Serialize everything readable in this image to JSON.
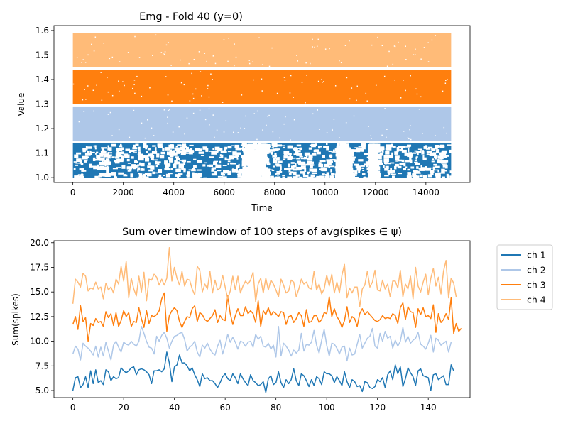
{
  "chart_data": [
    {
      "type": "scatter",
      "title": "Emg - Fold 40 (y=0)",
      "xlabel": "Time",
      "ylabel": "Value",
      "xlim": [
        -750,
        15750
      ],
      "ylim": [
        0.98,
        1.62
      ],
      "xticks": [
        0,
        2000,
        4000,
        6000,
        8000,
        10000,
        12000,
        14000
      ],
      "xtick_labels": [
        "0",
        "2000",
        "4000",
        "6000",
        "8000",
        "10000",
        "12000",
        "14000"
      ],
      "yticks": [
        1.0,
        1.1,
        1.2,
        1.3,
        1.4,
        1.5,
        1.6
      ],
      "ytick_labels": [
        "1.0",
        "1.1",
        "1.2",
        "1.3",
        "1.4",
        "1.5",
        "1.6"
      ],
      "grid": false,
      "x_range": [
        0,
        15000
      ],
      "bands": [
        {
          "channel": 1,
          "y_min": 1.0,
          "y_max": 1.14,
          "color": "#1f77b4",
          "sparse": true,
          "gaps": [
            [
              6700,
              7600
            ],
            [
              10400,
              10900
            ],
            [
              11700,
              11900
            ]
          ]
        },
        {
          "channel": 2,
          "y_min": 1.15,
          "y_max": 1.29,
          "color": "#aec7e8",
          "sparse": false,
          "gaps": []
        },
        {
          "channel": 3,
          "y_min": 1.3,
          "y_max": 1.44,
          "color": "#ff7f0e",
          "sparse": false,
          "gaps": []
        },
        {
          "channel": 4,
          "y_min": 1.45,
          "y_max": 1.59,
          "color": "#ffbb78",
          "sparse": false,
          "gaps": []
        }
      ]
    },
    {
      "type": "line",
      "title": "Sum over timewindow of 100 steps of avg(spikes ∈ ψ)",
      "xlabel": "",
      "ylabel": "Sum(spikes)",
      "xlim": [
        -7.45,
        156.45
      ],
      "ylim": [
        4.28,
        20.2
      ],
      "xticks": [
        0,
        20,
        40,
        60,
        80,
        100,
        120,
        140
      ],
      "xtick_labels": [
        "0",
        "20",
        "40",
        "60",
        "80",
        "100",
        "120",
        "140"
      ],
      "yticks": [
        5.0,
        7.5,
        10.0,
        12.5,
        15.0,
        17.5,
        20.0
      ],
      "ytick_labels": [
        "5.0",
        "7.5",
        "10.0",
        "12.5",
        "15.0",
        "17.5",
        "20.0"
      ],
      "grid": false,
      "legend_position": "outside-right-top",
      "x_start": 0,
      "x_step": 1,
      "series": [
        {
          "name": "ch 1",
          "color": "#1f77b4",
          "values": [
            5.0,
            6.3,
            6.4,
            5.3,
            5.6,
            6.4,
            5.3,
            7.0,
            5.7,
            7.1,
            5.8,
            6.0,
            5.6,
            7.1,
            6.9,
            6.0,
            6.4,
            6.2,
            6.3,
            7.3,
            7.0,
            6.8,
            7.0,
            7.3,
            7.4,
            6.6,
            7.1,
            7.2,
            7.1,
            6.9,
            6.6,
            5.7,
            7.0,
            7.0,
            7.1,
            6.9,
            7.2,
            8.9,
            7.8,
            5.9,
            7.4,
            7.6,
            8.6,
            7.8,
            7.8,
            7.5,
            7.0,
            7.3,
            6.6,
            6.1,
            5.4,
            6.7,
            6.2,
            6.3,
            6.0,
            6.0,
            5.7,
            5.3,
            5.8,
            6.4,
            6.7,
            6.2,
            6.0,
            6.7,
            6.3,
            5.7,
            6.7,
            6.2,
            5.8,
            5.5,
            6.6,
            6.0,
            5.8,
            5.5,
            5.6,
            5.9,
            4.8,
            6.2,
            6.5,
            5.6,
            5.8,
            6.9,
            5.8,
            5.3,
            6.1,
            5.7,
            6.1,
            7.2,
            6.0,
            5.5,
            6.7,
            6.5,
            6.0,
            5.4,
            6.1,
            5.5,
            6.4,
            6.2,
            5.6,
            6.9,
            6.7,
            6.7,
            6.5,
            5.8,
            6.4,
            6.0,
            5.5,
            6.9,
            5.9,
            5.3,
            6.1,
            5.9,
            5.4,
            5.5,
            4.9,
            5.9,
            5.8,
            5.3,
            5.2,
            5.4,
            6.1,
            5.9,
            6.3,
            5.3,
            6.6,
            7.0,
            6.1,
            7.6,
            6.7,
            7.4,
            5.4,
            6.2,
            7.3,
            6.8,
            6.4,
            5.5,
            7.0,
            7.2,
            6.5,
            6.4,
            6.3,
            5.0,
            6.6,
            6.7,
            6.1,
            6.3,
            6.5,
            5.6,
            5.6,
            7.6,
            7.0
          ]
        },
        {
          "name": "ch 2",
          "color": "#aec7e8",
          "values": [
            8.7,
            9.5,
            9.2,
            8.1,
            9.8,
            9.5,
            9.3,
            9.0,
            8.6,
            9.5,
            8.4,
            9.4,
            8.5,
            9.9,
            9.0,
            8.1,
            9.6,
            10.0,
            9.4,
            8.9,
            9.9,
            9.7,
            9.6,
            10.0,
            9.7,
            9.5,
            10.0,
            11.5,
            10.8,
            10.0,
            9.4,
            9.3,
            8.7,
            10.5,
            10.0,
            10.6,
            10.9,
            10.3,
            9.3,
            10.0,
            10.5,
            10.6,
            10.8,
            10.9,
            10.2,
            9.0,
            9.4,
            9.6,
            10.0,
            8.9,
            8.4,
            9.6,
            9.3,
            9.8,
            9.2,
            8.8,
            8.6,
            9.5,
            10.1,
            8.7,
            9.6,
            10.7,
            9.9,
            10.4,
            9.9,
            9.2,
            10.0,
            9.9,
            9.5,
            9.9,
            10.0,
            9.4,
            10.7,
            10.2,
            10.5,
            9.5,
            9.4,
            9.8,
            9.2,
            9.6,
            8.4,
            11.5,
            8.5,
            9.8,
            9.5,
            9.1,
            8.5,
            9.1,
            8.8,
            9.1,
            10.8,
            9.0,
            9.7,
            9.6,
            9.9,
            11.1,
            9.6,
            8.8,
            10.1,
            11.2,
            9.6,
            8.5,
            9.8,
            9.7,
            9.3,
            8.7,
            9.4,
            9.5,
            8.0,
            9.3,
            8.6,
            8.7,
            9.7,
            10.7,
            9.3,
            9.8,
            10.3,
            10.5,
            11.3,
            9.5,
            9.3,
            10.8,
            10.0,
            11.0,
            10.3,
            10.5,
            9.3,
            10.1,
            9.5,
            10.0,
            11.4,
            9.9,
            10.5,
            9.8,
            10.1,
            10.3,
            10.9,
            9.7,
            9.5,
            9.2,
            9.8,
            10.6,
            8.9,
            10.3,
            10.1,
            9.6,
            9.8,
            10.0,
            8.9,
            9.9
          ]
        },
        {
          "name": "ch 3",
          "color": "#ff7f0e",
          "values": [
            11.7,
            12.5,
            11.2,
            13.6,
            12.0,
            12.4,
            10.0,
            11.8,
            11.6,
            12.3,
            11.9,
            12.0,
            11.5,
            13.0,
            12.4,
            12.8,
            11.6,
            12.9,
            11.5,
            12.1,
            13.1,
            12.5,
            12.9,
            11.5,
            12.0,
            11.9,
            13.4,
            12.3,
            11.4,
            13.1,
            11.8,
            12.6,
            12.5,
            12.7,
            13.1,
            14.3,
            14.9,
            11.0,
            12.6,
            13.1,
            13.4,
            13.1,
            12.0,
            11.4,
            12.0,
            12.5,
            12.4,
            13.3,
            13.6,
            12.0,
            12.9,
            12.7,
            12.2,
            12.0,
            12.3,
            12.6,
            13.2,
            11.9,
            12.6,
            12.2,
            12.1,
            14.6,
            12.8,
            11.7,
            12.6,
            13.3,
            12.6,
            12.6,
            13.5,
            12.8,
            13.1,
            12.8,
            11.9,
            14.1,
            11.5,
            13.1,
            12.7,
            13.4,
            12.6,
            13.0,
            12.8,
            12.5,
            13.0,
            12.9,
            11.7,
            12.5,
            12.6,
            11.9,
            12.3,
            12.9,
            12.6,
            11.5,
            13.2,
            11.9,
            12.0,
            12.6,
            12.6,
            11.9,
            12.2,
            12.9,
            12.8,
            14.5,
            12.5,
            13.3,
            12.5,
            12.1,
            11.4,
            12.1,
            13.5,
            11.9,
            12.5,
            12.3,
            11.5,
            12.8,
            13.3,
            12.7,
            13.0,
            12.7,
            12.4,
            12.1,
            12.0,
            12.2,
            12.6,
            12.3,
            12.4,
            12.3,
            12.8,
            12.6,
            11.8,
            13.4,
            13.9,
            12.2,
            13.5,
            13.0,
            12.9,
            11.4,
            13.3,
            12.7,
            13.4,
            12.5,
            12.6,
            12.3,
            13.7,
            10.9,
            12.8,
            11.9,
            12.2,
            12.8,
            12.2,
            14.4,
            10.8,
            11.8,
            11.0,
            11.3
          ]
        },
        {
          "name": "ch 4",
          "color": "#ffbb78",
          "values": [
            13.8,
            16.3,
            16.0,
            15.5,
            16.9,
            16.6,
            15.1,
            15.4,
            15.3,
            16.0,
            15.3,
            15.5,
            14.3,
            15.9,
            15.2,
            15.5,
            14.9,
            16.3,
            15.8,
            17.6,
            16.1,
            18.1,
            14.4,
            16.4,
            15.3,
            14.6,
            16.6,
            15.0,
            17.0,
            14.1,
            16.3,
            16.2,
            16.8,
            16.5,
            15.7,
            16.3,
            15.7,
            16.4,
            19.5,
            16.1,
            17.5,
            16.4,
            15.7,
            17.1,
            15.6,
            16.3,
            16.2,
            15.3,
            14.7,
            17.6,
            17.2,
            15.0,
            15.8,
            15.3,
            17.1,
            14.9,
            16.2,
            15.2,
            15.4,
            16.7,
            15.5,
            14.3,
            15.1,
            16.6,
            15.2,
            16.6,
            14.9,
            15.6,
            16.1,
            15.8,
            16.2,
            17.0,
            14.0,
            15.8,
            16.4,
            14.9,
            16.4,
            15.2,
            16.2,
            15.8,
            15.2,
            14.5,
            16.3,
            15.7,
            14.9,
            15.1,
            16.2,
            16.0,
            14.5,
            15.3,
            16.3,
            15.8,
            16.0,
            15.4,
            15.3,
            17.1,
            15.2,
            15.8,
            14.8,
            15.3,
            16.7,
            15.6,
            16.8,
            14.9,
            16.0,
            14.9,
            16.7,
            17.8,
            14.4,
            15.4,
            14.9,
            15.5,
            15.5,
            13.5,
            15.3,
            15.7,
            17.1,
            15.5,
            16.0,
            17.2,
            15.2,
            15.1,
            16.2,
            15.3,
            15.8,
            14.5,
            16.1,
            16.1,
            15.4,
            17.2,
            14.5,
            15.8,
            15.3,
            16.6,
            14.3,
            17.5,
            15.6,
            15.0,
            16.0,
            16.8,
            14.7,
            16.4,
            17.4,
            15.6,
            16.5,
            14.8,
            17.1,
            18.2,
            14.4,
            16.4,
            15.9,
            14.5
          ]
        }
      ]
    }
  ]
}
